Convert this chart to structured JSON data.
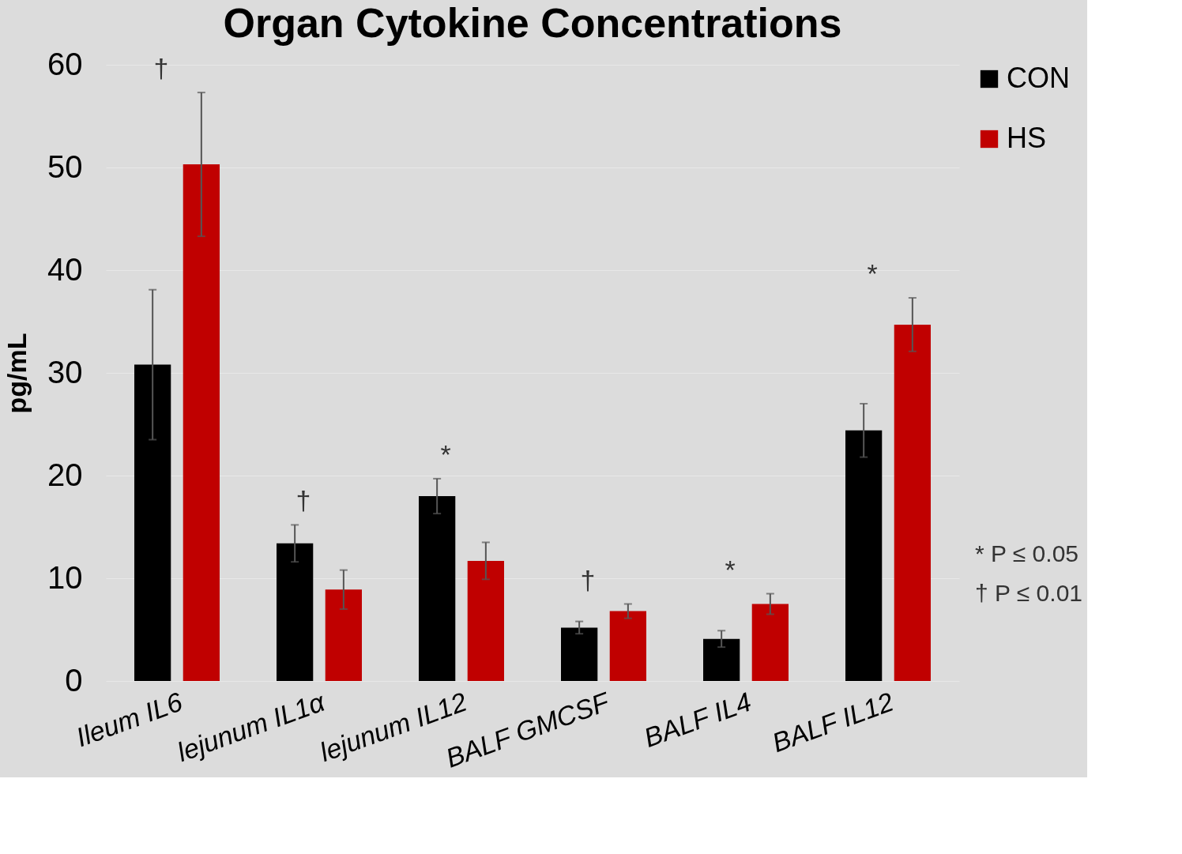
{
  "chart_data": {
    "type": "bar",
    "title": "Organ Cytokine Concentrations",
    "ylabel": "pg/mL",
    "categories": [
      "Ileum IL6",
      "lejunum IL1α",
      "lejunum IL12",
      "BALF GMCSF",
      "BALF IL4",
      "BALF IL12"
    ],
    "series": [
      {
        "name": "CON",
        "color": "#000000",
        "values": [
          30.8,
          13.4,
          18.0,
          5.2,
          4.1,
          24.4
        ],
        "errors": [
          7.3,
          1.8,
          1.7,
          0.6,
          0.8,
          2.6
        ]
      },
      {
        "name": "HS",
        "color": "#c00000",
        "values": [
          50.3,
          8.9,
          11.7,
          6.8,
          7.5,
          34.7
        ],
        "errors": [
          7.0,
          1.9,
          1.8,
          0.7,
          1.0,
          2.6
        ]
      }
    ],
    "ylim": [
      0,
      60
    ],
    "yticks": [
      0,
      10,
      20,
      30,
      40,
      50,
      60
    ],
    "grid": "y",
    "legend": "right",
    "annotations": [
      "†",
      "†",
      "*",
      "†",
      "*",
      "*",
      "* P ≤ 0.05",
      "† P ≤ 0.01"
    ]
  }
}
